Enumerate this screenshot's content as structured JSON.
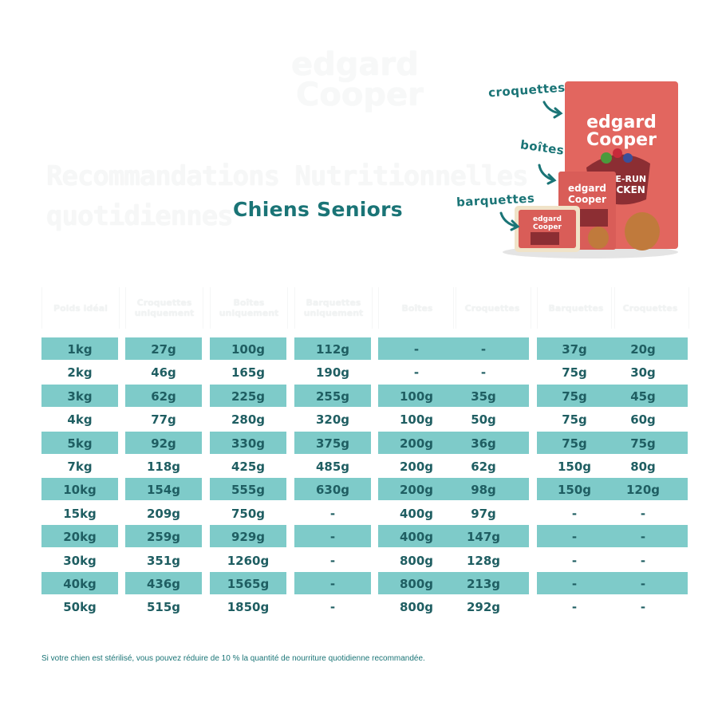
{
  "logo": {
    "line1": "edgard",
    "line2": "Cooper"
  },
  "title": "Recommandations Nutritionnelles quotidiennes",
  "subtitle": "Chiens Seniors",
  "product_labels": {
    "kibble": "croquettes",
    "cans": "boîtes",
    "trays": "barquettes"
  },
  "headers": [
    "Poids idéal",
    "Croquettes uniquement",
    "Boîtes uniquement",
    "Barquettes uniquement",
    "Boîtes",
    "Croquettes",
    "Barquettes",
    "Croquettes"
  ],
  "rows": [
    [
      "1kg",
      "27g",
      "100g",
      "112g",
      "-",
      "-",
      "37g",
      "20g"
    ],
    [
      "2kg",
      "46g",
      "165g",
      "190g",
      "-",
      "-",
      "75g",
      "30g"
    ],
    [
      "3kg",
      "62g",
      "225g",
      "255g",
      "100g",
      "35g",
      "75g",
      "45g"
    ],
    [
      "4kg",
      "77g",
      "280g",
      "320g",
      "100g",
      "50g",
      "75g",
      "60g"
    ],
    [
      "5kg",
      "92g",
      "330g",
      "375g",
      "200g",
      "36g",
      "75g",
      "75g"
    ],
    [
      "7kg",
      "118g",
      "425g",
      "485g",
      "200g",
      "62g",
      "150g",
      "80g"
    ],
    [
      "10kg",
      "154g",
      "555g",
      "630g",
      "200g",
      "98g",
      "150g",
      "120g"
    ],
    [
      "15kg",
      "209g",
      "750g",
      "-",
      "400g",
      "97g",
      "-",
      "-"
    ],
    [
      "20kg",
      "259g",
      "929g",
      "-",
      "400g",
      "147g",
      "-",
      "-"
    ],
    [
      "30kg",
      "351g",
      "1260g",
      "-",
      "800g",
      "128g",
      "-",
      "-"
    ],
    [
      "40kg",
      "436g",
      "1565g",
      "-",
      "800g",
      "213g",
      "-",
      "-"
    ],
    [
      "50kg",
      "515g",
      "1850g",
      "-",
      "800g",
      "292g",
      "-",
      "-"
    ]
  ],
  "footnote": "Si votre chien est stérilisé, vous pouvez réduire de 10 % la quantité de nourriture quotidienne recommandée.",
  "colors": {
    "band": "#7ecbc9",
    "text": "#1f5e62",
    "accent": "#1a7476",
    "product": "#e2665f"
  }
}
